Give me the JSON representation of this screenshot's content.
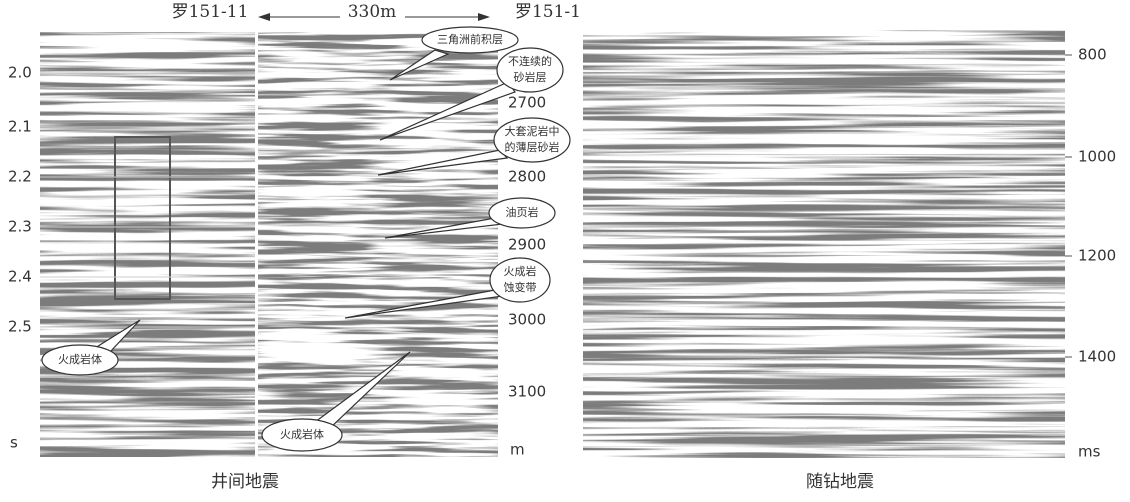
{
  "top_labels": {
    "left_well": "罗151-11",
    "distance": "330m",
    "right_well": "罗151-1"
  },
  "left_panel": {
    "time_ticks": [
      "2.0",
      "2.1",
      "2.2",
      "2.3",
      "2.4",
      "2.5"
    ],
    "time_unit": "s",
    "depth_ticks": [
      "2700",
      "2800",
      "2900",
      "3000",
      "3100"
    ],
    "depth_unit": "m",
    "caption": "井间地震",
    "callouts": [
      {
        "lines": [
          "三角洲前积层"
        ]
      },
      {
        "lines": [
          "不连续的",
          "砂岩层"
        ]
      },
      {
        "lines": [
          "大套泥岩中",
          "的薄层砂岩"
        ]
      },
      {
        "lines": [
          "油页岩"
        ]
      },
      {
        "lines": [
          "火成岩",
          "蚀变带"
        ]
      },
      {
        "lines": [
          "火成岩体"
        ]
      },
      {
        "lines": [
          "火成岩体"
        ]
      }
    ]
  },
  "right_panel": {
    "ticks": [
      "800",
      "1000",
      "1200",
      "1400"
    ],
    "unit": "ms",
    "caption": "随钻地震"
  }
}
